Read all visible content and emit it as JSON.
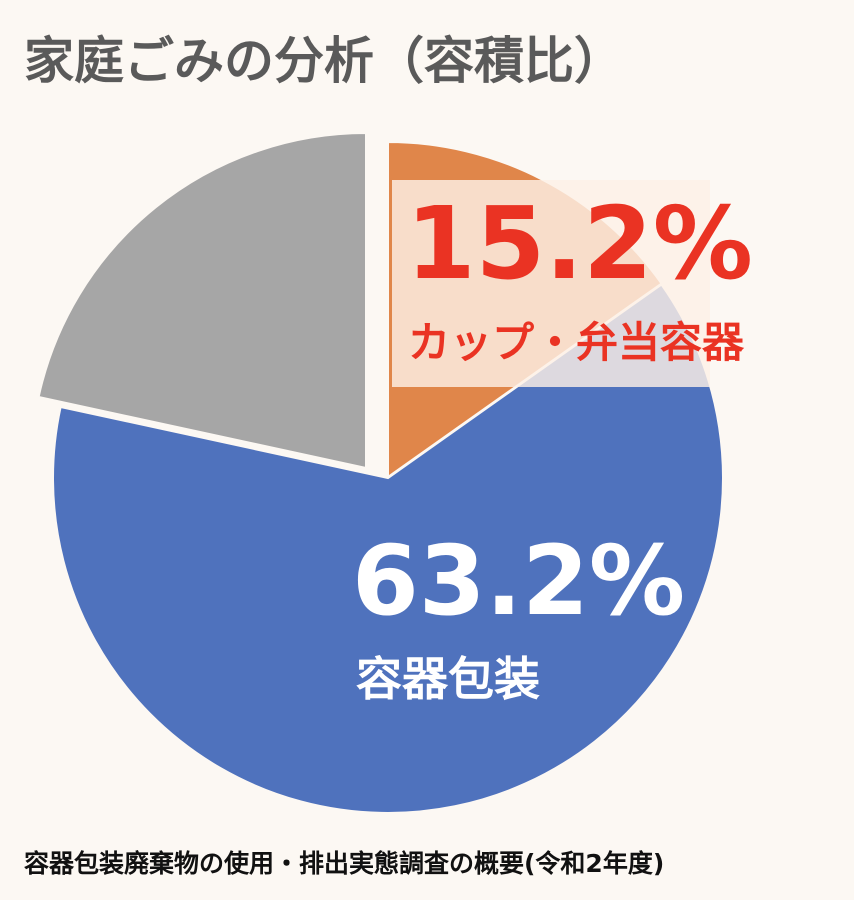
{
  "chart_data": {
    "type": "pie",
    "title": "家庭ごみの分析（容積比）",
    "source": "容器包装廃棄物の使用・排出実態調査の概要(令和2年度)",
    "slices": [
      {
        "label": "カップ・弁当容器",
        "value": 15.2,
        "value_label": "15.2%",
        "color": "#e0864a",
        "label_color": "#ea3323"
      },
      {
        "label": "容器包装",
        "value": 63.2,
        "value_label": "63.2%",
        "color": "#4f72bd",
        "label_color": "#ffffff"
      },
      {
        "label": "",
        "value": 21.6,
        "value_label": "",
        "color": "#a6a6a6",
        "label_color": "#ffffff"
      }
    ],
    "highlight_box_color": "#fdf0e6"
  }
}
